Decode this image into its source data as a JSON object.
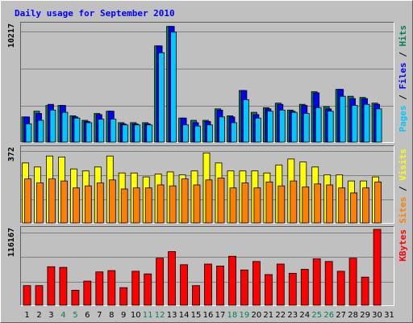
{
  "chart_data": [
    {
      "type": "bar",
      "title": "Daily usage for September 2010",
      "categories": [
        "1",
        "2",
        "3",
        "4",
        "5",
        "6",
        "7",
        "8",
        "9",
        "10",
        "11",
        "12",
        "13",
        "14",
        "15",
        "16",
        "17",
        "18",
        "19",
        "20",
        "21",
        "22",
        "23",
        "24",
        "25",
        "26",
        "27",
        "28",
        "29",
        "30",
        "31"
      ],
      "weekend_categories": [
        "4",
        "5",
        "11",
        "12",
        "18",
        "19",
        "25",
        "26"
      ],
      "ylabel_max": "10217",
      "ylim": [
        0,
        10217
      ],
      "legend_labels": [
        "Pages",
        "Files",
        "Hits"
      ],
      "series": [
        {
          "name": "Hits",
          "color": "#00805c",
          "values": [
            2200,
            2700,
            3200,
            3200,
            2300,
            1900,
            2500,
            2700,
            1700,
            1700,
            1700,
            8400,
            10100,
            2100,
            1900,
            1900,
            2900,
            2300,
            4500,
            2600,
            3000,
            3400,
            2800,
            3300,
            4400,
            3100,
            4600,
            4000,
            3900,
            3400,
            null
          ]
        },
        {
          "name": "Files",
          "color": "#0000ff",
          "values": [
            2200,
            2500,
            3300,
            3200,
            2200,
            1800,
            2400,
            2700,
            1600,
            1600,
            1600,
            8400,
            10100,
            2100,
            1700,
            1800,
            2800,
            2200,
            4500,
            2400,
            2900,
            3300,
            2700,
            3200,
            4300,
            2900,
            4600,
            3800,
            3800,
            3300,
            null
          ]
        },
        {
          "name": "Pages",
          "color": "#00c8ff",
          "values": [
            1600,
            1900,
            2800,
            2600,
            2100,
            1700,
            2000,
            2000,
            1500,
            1500,
            1500,
            7800,
            9600,
            1500,
            1400,
            1500,
            2200,
            1700,
            3700,
            2100,
            2700,
            2800,
            2600,
            2500,
            3000,
            2700,
            4000,
            3200,
            3300,
            2900,
            null
          ]
        }
      ]
    },
    {
      "type": "bar",
      "categories": [
        "1",
        "2",
        "3",
        "4",
        "5",
        "6",
        "7",
        "8",
        "9",
        "10",
        "11",
        "12",
        "13",
        "14",
        "15",
        "16",
        "17",
        "18",
        "19",
        "20",
        "21",
        "22",
        "23",
        "24",
        "25",
        "26",
        "27",
        "28",
        "29",
        "30",
        "31"
      ],
      "ylabel_max": "372",
      "ylim": [
        0,
        372
      ],
      "legend_labels": [
        "Sites",
        "Visits"
      ],
      "series": [
        {
          "name": "Visits",
          "color": "#ffff00",
          "values": [
            300,
            280,
            335,
            330,
            270,
            260,
            280,
            335,
            250,
            250,
            230,
            245,
            255,
            240,
            260,
            350,
            300,
            260,
            260,
            260,
            250,
            290,
            320,
            305,
            280,
            240,
            240,
            210,
            210,
            230,
            null
          ]
        },
        {
          "name": "Sites",
          "color": "#ff8000",
          "values": [
            220,
            200,
            220,
            210,
            175,
            185,
            200,
            215,
            170,
            175,
            175,
            190,
            185,
            220,
            190,
            215,
            225,
            175,
            200,
            175,
            205,
            185,
            210,
            180,
            195,
            190,
            175,
            150,
            175,
            205,
            null
          ]
        }
      ]
    },
    {
      "type": "bar",
      "categories": [
        "1",
        "2",
        "3",
        "4",
        "5",
        "6",
        "7",
        "8",
        "9",
        "10",
        "11",
        "12",
        "13",
        "14",
        "15",
        "16",
        "17",
        "18",
        "19",
        "20",
        "21",
        "22",
        "23",
        "24",
        "25",
        "26",
        "27",
        "28",
        "29",
        "30",
        "31"
      ],
      "ylabel_max": "116167",
      "ylim": [
        0,
        116167
      ],
      "legend_labels": [
        "KBytes"
      ],
      "series": [
        {
          "name": "KBytes",
          "color": "#ff0000",
          "values": [
            30000,
            30000,
            59000,
            58000,
            23000,
            37000,
            51000,
            53000,
            27000,
            52000,
            48000,
            72000,
            82000,
            62000,
            30000,
            63000,
            60000,
            75000,
            54000,
            67000,
            47000,
            63000,
            49000,
            55000,
            71000,
            67000,
            52000,
            72000,
            43000,
            116167,
            null
          ]
        }
      ],
      "bar_outline": "#000000"
    }
  ],
  "colors": {
    "page_bg": "#c0c0c0",
    "plot_bg": "#c0c0c0",
    "grid": "#808080",
    "title": "#0000ff",
    "weekday_tick": "#000000",
    "weekend_tick": "#00805c"
  },
  "legend_colors": {
    "Pages": "#00c8ff",
    "Files": "#0000ff",
    "Hits": "#00805c",
    "Sites": "#ff8000",
    "Visits": "#ffff00",
    "KBytes": "#ff0000"
  }
}
